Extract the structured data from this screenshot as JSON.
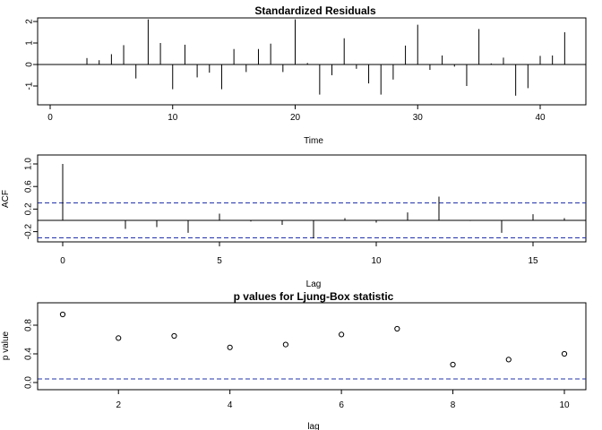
{
  "chart_data": [
    {
      "type": "line",
      "title": "Standardized Residuals",
      "xlabel": "Time",
      "ylabel": "",
      "xlim": [
        0,
        42
      ],
      "ylim": [
        -1.5,
        2.2
      ],
      "xticks": [
        "0",
        "10",
        "20",
        "30",
        "40"
      ],
      "yticks": [
        "-1",
        "0",
        "1",
        "2"
      ],
      "x": [
        1,
        2,
        3,
        4,
        5,
        6,
        7,
        8,
        9,
        10,
        11,
        12,
        13,
        14,
        15,
        16,
        17,
        18,
        19,
        20,
        21,
        22,
        23,
        24,
        25,
        26,
        27,
        28,
        29,
        30,
        31,
        32,
        33,
        34,
        35,
        36,
        37,
        38,
        39,
        40,
        41,
        42
      ],
      "values": [
        0,
        0,
        0.3,
        0.2,
        0.48,
        0.9,
        -0.65,
        2.1,
        1.0,
        -1.15,
        0.92,
        -0.6,
        -0.38,
        -1.15,
        0.72,
        -0.35,
        0.72,
        0.97,
        -0.35,
        2.1,
        0.07,
        -1.4,
        -0.5,
        1.22,
        -0.2,
        -0.88,
        -1.4,
        -0.7,
        0.88,
        1.85,
        -0.25,
        0.42,
        -0.1,
        -1.0,
        1.65,
        0.05,
        0.32,
        -1.45,
        -1.1,
        0.4,
        0.42,
        1.5
      ]
    },
    {
      "type": "line",
      "title": "",
      "xlabel": "Lag",
      "ylabel": "ACF",
      "xlim": [
        0,
        16
      ],
      "ylim": [
        -0.35,
        1.05
      ],
      "xticks": [
        "0",
        "5",
        "10",
        "15"
      ],
      "yticks": [
        "-0.2",
        "0.2",
        "0.6",
        "1.0"
      ],
      "x": [
        0,
        1,
        2,
        3,
        4,
        5,
        6,
        7,
        8,
        9,
        10,
        11,
        12,
        13,
        14,
        15,
        16
      ],
      "values": [
        1.0,
        0,
        -0.15,
        -0.12,
        -0.22,
        0.12,
        -0.02,
        -0.08,
        -0.32,
        0.04,
        -0.04,
        0.14,
        0.42,
        -0.01,
        -0.22,
        0.11,
        0.04
      ],
      "confidence_bound": 0.31
    },
    {
      "type": "scatter",
      "title": "p values for Ljung-Box statistic",
      "xlabel": "lag",
      "ylabel": "p value",
      "xlim": [
        1,
        10
      ],
      "ylim": [
        0,
        1
      ],
      "xticks": [
        "2",
        "4",
        "6",
        "8",
        "10"
      ],
      "yticks": [
        "0.0",
        "0.4",
        "0.8"
      ],
      "x": [
        1,
        2,
        3,
        4,
        5,
        6,
        7,
        8,
        9,
        10
      ],
      "values": [
        0.95,
        0.62,
        0.65,
        0.49,
        0.53,
        0.67,
        0.75,
        0.25,
        0.32,
        0.4
      ],
      "reference_line": 0.05
    }
  ]
}
